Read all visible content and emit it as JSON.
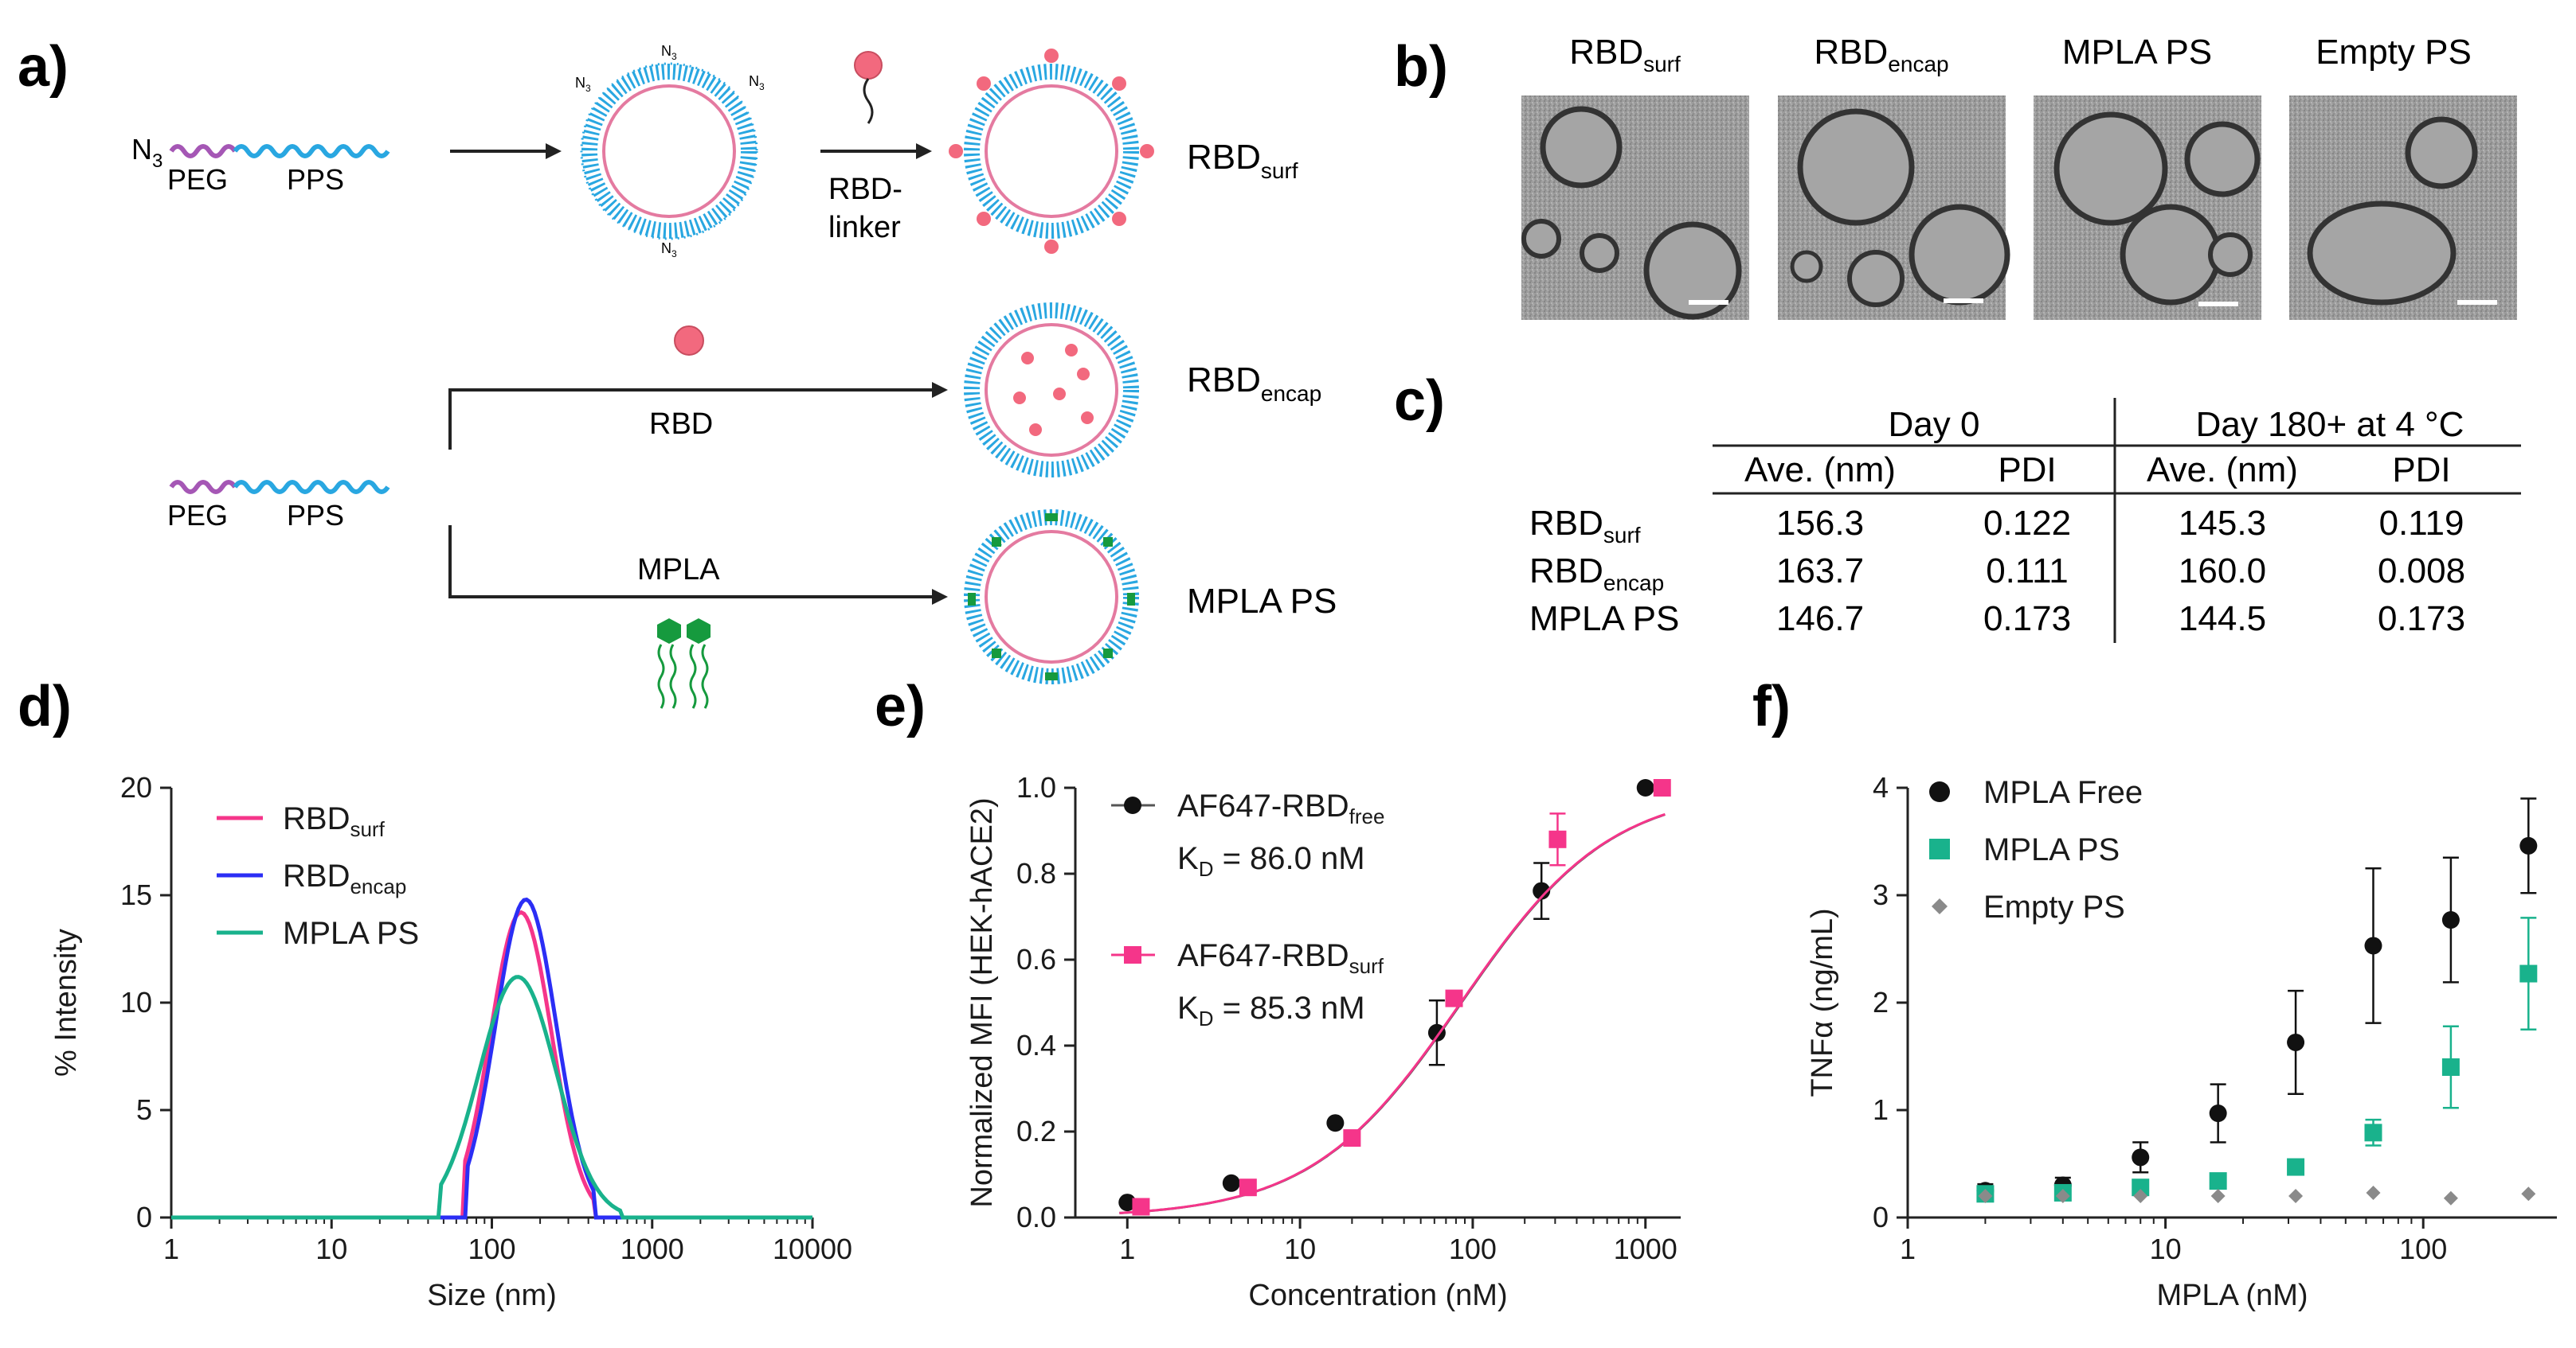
{
  "figure": {
    "panel_labels": [
      "a)",
      "b)",
      "c)",
      "d)",
      "e)",
      "f)"
    ],
    "colors": {
      "peg": "#a557b5",
      "pps": "#29a7e1",
      "ps_core": "#ffffff",
      "ps_inner": "#e47aa0",
      "rbd": "#f2697e",
      "mpla": "#169a3e",
      "black": "#111111",
      "pink": "#f5358a",
      "blue": "#2b2ef5",
      "teal": "#19b28c",
      "grey": "#8a8a8a"
    }
  },
  "panel_a": {
    "n3": "N",
    "n3_sub": "3",
    "azide_label": "N",
    "azide_sub": "3",
    "peg": "PEG",
    "pps": "PPS",
    "peg2": "PEG",
    "pps2": "PPS",
    "rbd_linker_1": "RBD-",
    "rbd_linker_2": "linker",
    "rbd_label": "RBD",
    "mpla_label": "MPLA",
    "rbd_surf": "RBD",
    "rbd_surf_sub": "surf",
    "rbd_encap": "RBD",
    "rbd_encap_sub": "encap",
    "mpla_ps": "MPLA PS"
  },
  "panel_b": {
    "images": [
      {
        "title": "RBD",
        "sub": "surf"
      },
      {
        "title": "RBD",
        "sub": "encap"
      },
      {
        "title": "MPLA PS",
        "sub": ""
      },
      {
        "title": "Empty PS",
        "sub": ""
      }
    ]
  },
  "panel_c": {
    "group_headers": [
      "Day 0",
      "Day 180+ at 4 °C"
    ],
    "col_headers": [
      "Ave. (nm)",
      "PDI",
      "Ave. (nm)",
      "PDI"
    ],
    "rows": [
      {
        "name": "RBD",
        "sub": "surf",
        "vals": [
          "156.3",
          "0.122",
          "145.3",
          "0.119"
        ]
      },
      {
        "name": "RBD",
        "sub": "encap",
        "vals": [
          "163.7",
          "0.111",
          "160.0",
          "0.008"
        ]
      },
      {
        "name": "MPLA PS",
        "sub": "",
        "vals": [
          "146.7",
          "0.173",
          "144.5",
          "0.173"
        ]
      }
    ]
  },
  "chart_data": [
    {
      "id": "d",
      "type": "line",
      "xlabel": "Size (nm)",
      "ylabel": "% Intensity",
      "xscale": "log",
      "xlim": [
        1,
        10000
      ],
      "ylim": [
        0,
        20
      ],
      "xticks": [
        1,
        10,
        100,
        1000,
        10000
      ],
      "xtick_labels": [
        "1",
        "10",
        "100",
        "1000",
        "10000"
      ],
      "yticks": [
        0,
        5,
        10,
        15,
        20
      ],
      "ytick_labels": [
        "0",
        "5",
        "10",
        "15",
        "20"
      ],
      "legend": "top-left",
      "series": [
        {
          "name": "RBD",
          "sub": "surf",
          "color": "#f5358a",
          "peak": 14.2,
          "center": 152,
          "sigma": 0.19,
          "from": 68,
          "to": 430
        },
        {
          "name": "RBD",
          "sub": "encap",
          "color": "#2b2ef5",
          "peak": 14.8,
          "center": 163,
          "sigma": 0.19,
          "from": 70,
          "to": 440
        },
        {
          "name": "MPLA PS",
          "sub": "",
          "color": "#19b28c",
          "peak": 11.2,
          "center": 145,
          "sigma": 0.24,
          "from": 48,
          "to": 650
        }
      ]
    },
    {
      "id": "e",
      "type": "scatter",
      "xlabel": "Concentration (nM)",
      "ylabel": "Normalized MFI (HEK-hACE2)",
      "xscale": "log",
      "xlim": [
        0.5,
        1600
      ],
      "ylim": [
        0,
        1.0
      ],
      "xticks": [
        1,
        10,
        100,
        1000
      ],
      "xtick_labels": [
        "1",
        "10",
        "100",
        "1000"
      ],
      "yticks": [
        0,
        0.2,
        0.4,
        0.6,
        0.8,
        1.0
      ],
      "ytick_labels": [
        "0.0",
        "0.2",
        "0.4",
        "0.6",
        "0.8",
        "1.0"
      ],
      "series": [
        {
          "name": "AF647-RBD",
          "sub": "free",
          "kd_text": "K",
          "kd_sub": "D",
          "kd_value": " = 86.0 nM",
          "kd": 86.0,
          "marker": "circle",
          "color": "#111111",
          "x": [
            1.0,
            4.0,
            16,
            62,
            250,
            1000
          ],
          "y": [
            0.035,
            0.08,
            0.22,
            0.43,
            0.76,
            1.0
          ],
          "err": [
            0,
            0,
            0,
            0.075,
            0.065,
            0
          ]
        },
        {
          "name": "AF647-RBD",
          "sub": "surf",
          "kd_text": "K",
          "kd_sub": "D",
          "kd_value": " = 85.3 nM",
          "kd": 85.3,
          "marker": "square",
          "color": "#f5358a",
          "x": [
            1.2,
            5.0,
            20,
            78,
            310,
            1250
          ],
          "y": [
            0.025,
            0.07,
            0.185,
            0.51,
            0.88,
            1.0
          ],
          "err": [
            0,
            0,
            0,
            0,
            0.06,
            0
          ]
        }
      ]
    },
    {
      "id": "f",
      "type": "scatter",
      "xlabel": "MPLA (nM)",
      "ylabel": "TNFα (ng/mL)",
      "xscale": "log",
      "xlim": [
        1,
        330
      ],
      "ylim": [
        0,
        4
      ],
      "xticks": [
        1,
        10,
        100
      ],
      "xtick_labels": [
        "1",
        "10",
        "100"
      ],
      "yticks": [
        0,
        1,
        2,
        3,
        4
      ],
      "ytick_labels": [
        "0",
        "1",
        "2",
        "3",
        "4"
      ],
      "legend": "top-left",
      "series": [
        {
          "name": "MPLA Free",
          "marker": "circle",
          "color": "#111111",
          "x": [
            2,
            4,
            8,
            16,
            32,
            64,
            128,
            256
          ],
          "y": [
            0.25,
            0.3,
            0.56,
            0.97,
            1.63,
            2.53,
            2.77,
            3.46
          ],
          "err": [
            0.06,
            0.07,
            0.14,
            0.27,
            0.48,
            0.72,
            0.58,
            0.44
          ]
        },
        {
          "name": "MPLA PS",
          "marker": "square",
          "color": "#19b28c",
          "x": [
            2,
            4,
            8,
            16,
            32,
            64,
            128,
            256
          ],
          "y": [
            0.22,
            0.23,
            0.28,
            0.34,
            0.47,
            0.79,
            1.4,
            2.27
          ],
          "err": [
            0.03,
            0.03,
            0.07,
            0.05,
            0.06,
            0.12,
            0.38,
            0.52
          ]
        },
        {
          "name": "Empty PS",
          "marker": "diamond",
          "color": "#8a8a8a",
          "x": [
            2,
            4,
            8,
            16,
            32,
            64,
            128,
            256
          ],
          "y": [
            0.2,
            0.2,
            0.2,
            0.2,
            0.2,
            0.23,
            0.18,
            0.22
          ],
          "err": [
            0,
            0,
            0,
            0,
            0,
            0,
            0,
            0
          ]
        }
      ]
    }
  ]
}
